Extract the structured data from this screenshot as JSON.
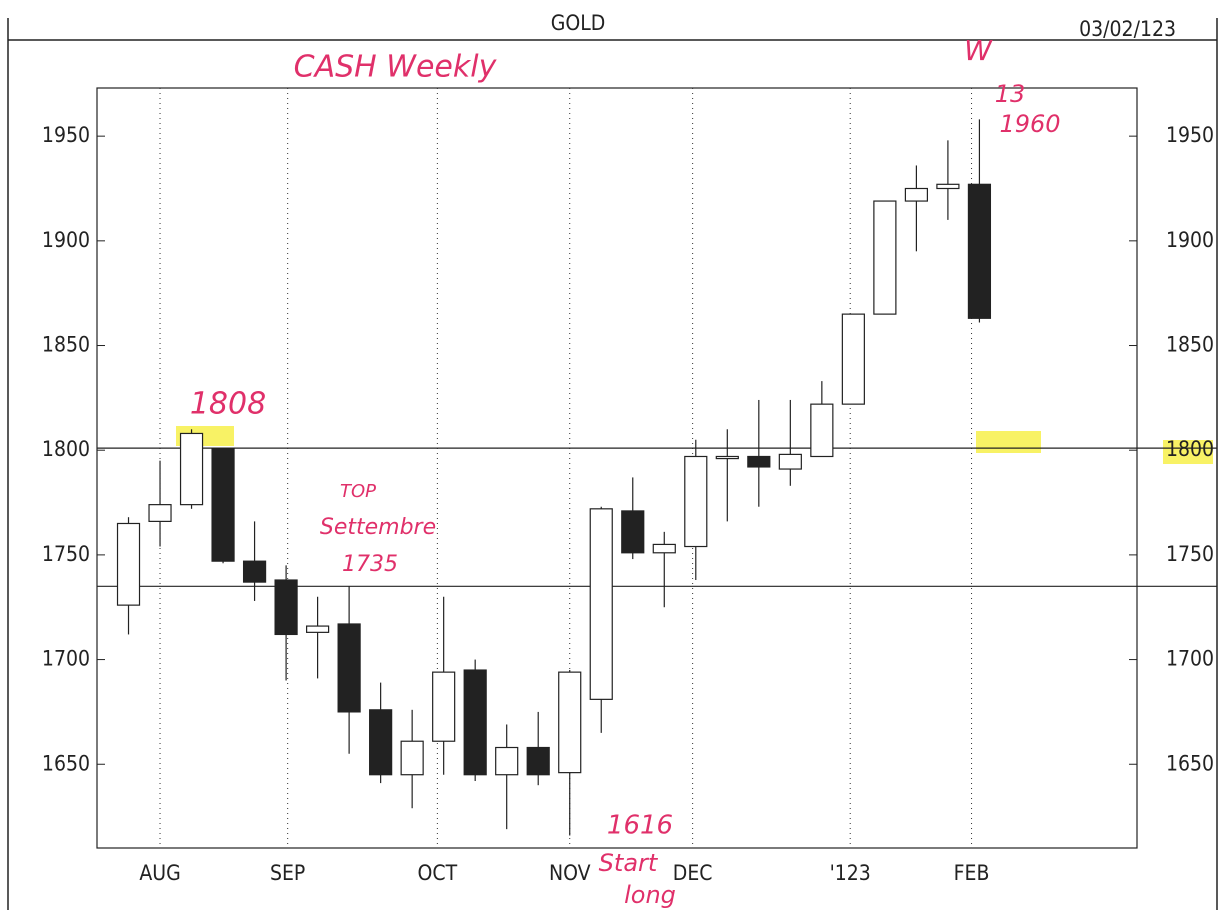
{
  "chart_data": {
    "type": "candlestick",
    "title": "GOLD",
    "date": "03/02/123",
    "x": [
      0,
      1,
      2,
      3,
      4,
      5,
      6,
      7,
      8,
      9,
      10,
      11,
      12,
      13,
      14,
      15,
      16,
      17,
      18,
      19,
      20,
      21,
      22,
      23,
      24,
      25,
      26,
      27
    ],
    "open": [
      1726,
      1766,
      1774,
      1801,
      1747,
      1738,
      1713,
      1717,
      1676,
      1645,
      1661,
      1695,
      1645,
      1658,
      1646,
      1681,
      1771,
      1751,
      1754,
      1796,
      1797,
      1791,
      1797,
      1822,
      1865,
      1919,
      1925,
      1927
    ],
    "high": [
      1768,
      1795,
      1810,
      1801,
      1766,
      1745,
      1730,
      1735,
      1689,
      1676,
      1730,
      1700,
      1669,
      1675,
      1695,
      1773,
      1787,
      1761,
      1805,
      1810,
      1824,
      1824,
      1833,
      1865,
      1919,
      1936,
      1948,
      1958
    ],
    "low": [
      1712,
      1754,
      1772,
      1746,
      1728,
      1690,
      1691,
      1655,
      1641,
      1629,
      1645,
      1642,
      1619,
      1640,
      1616,
      1665,
      1748,
      1725,
      1738,
      1766,
      1773,
      1783,
      1797,
      1822,
      1865,
      1895,
      1910,
      1861
    ],
    "close": [
      1765,
      1774,
      1808,
      1747,
      1737,
      1712,
      1716,
      1675,
      1645,
      1661,
      1694,
      1645,
      1658,
      1645,
      1694,
      1772,
      1751,
      1755,
      1797,
      1797,
      1792,
      1798,
      1822,
      1865,
      1919,
      1925,
      1927,
      1863
    ],
    "up_color": "#ffffff",
    "down_color": "#222222",
    "xlim": [
      -1,
      32
    ],
    "xticks": [
      {
        "value": 1,
        "label": "AUG"
      },
      {
        "value": 5.05,
        "label": "SEP"
      },
      {
        "value": 9.8,
        "label": "OCT"
      },
      {
        "value": 14,
        "label": "NOV"
      },
      {
        "value": 17.9,
        "label": "DEC"
      },
      {
        "value": 22.9,
        "label": "'123"
      },
      {
        "value": 26.75,
        "label": "FEB"
      }
    ],
    "ylim": [
      1610,
      1973
    ],
    "yticks": [
      1650,
      1700,
      1750,
      1800,
      1850,
      1900,
      1950
    ],
    "hlines": [
      1801,
      1735
    ],
    "grid": true,
    "annotations": [
      "CASH Weekly",
      "W",
      "13",
      "1960",
      "1808",
      "TOP",
      "Settembre",
      "1735",
      "1616",
      "Start",
      "long"
    ]
  }
}
